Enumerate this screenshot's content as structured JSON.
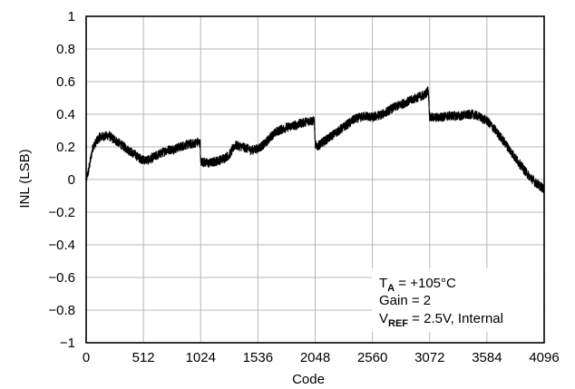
{
  "chart_data": {
    "type": "line",
    "xlabel": "Code",
    "ylabel": "INL (LSB)",
    "xlim": [
      0,
      4096
    ],
    "ylim": [
      -1,
      1
    ],
    "xticks": [
      0,
      512,
      1024,
      1536,
      2048,
      2560,
      3072,
      3584,
      4096
    ],
    "yticks": [
      -1,
      -0.8,
      -0.6,
      -0.4,
      -0.2,
      0,
      0.2,
      0.4,
      0.6,
      0.8,
      1
    ],
    "xtick_labels": [
      "0",
      "512",
      "1024",
      "1536",
      "2048",
      "2560",
      "3072",
      "3584",
      "4096"
    ],
    "ytick_labels": [
      "−1",
      "−0.8",
      "−0.6",
      "−0.4",
      "−0.2",
      "0",
      "0.2",
      "0.4",
      "0.6",
      "0.8",
      "1"
    ],
    "grid": true,
    "line_color": "#000000",
    "noise_band_lsb": 0.03,
    "annotations": {
      "line1_main": "T",
      "line1_sub": "A",
      "line1_rest": " = +105°C",
      "line2": "Gain = 2",
      "line3_main": "V",
      "line3_sub": "REF",
      "line3_rest": " = 2.5V, Internal"
    },
    "series": [
      {
        "x": [
          0,
          20,
          60,
          120,
          200,
          300,
          400,
          480,
          512,
          560,
          640,
          720,
          800,
          880,
          960,
          1000,
          1020,
          1024,
          1030,
          1100,
          1200,
          1280,
          1330,
          1400,
          1480,
          1536,
          1600,
          1660,
          1720,
          1800,
          1900,
          2000,
          2040,
          2048,
          2060,
          2120,
          2200,
          2300,
          2400,
          2500,
          2560,
          2650,
          2750,
          2850,
          2950,
          3030,
          3060,
          3072,
          3090,
          3150,
          3250,
          3350,
          3450,
          3500,
          3584,
          3650,
          3750,
          3850,
          3950,
          4020,
          4060,
          4096
        ],
        "values": [
          0.0,
          0.05,
          0.2,
          0.26,
          0.27,
          0.22,
          0.17,
          0.13,
          0.12,
          0.12,
          0.15,
          0.18,
          0.19,
          0.21,
          0.22,
          0.23,
          0.22,
          0.1,
          0.11,
          0.1,
          0.12,
          0.15,
          0.21,
          0.2,
          0.18,
          0.19,
          0.22,
          0.27,
          0.3,
          0.32,
          0.34,
          0.36,
          0.36,
          0.22,
          0.2,
          0.23,
          0.27,
          0.32,
          0.37,
          0.39,
          0.38,
          0.4,
          0.44,
          0.47,
          0.5,
          0.52,
          0.55,
          0.38,
          0.38,
          0.38,
          0.39,
          0.39,
          0.4,
          0.39,
          0.36,
          0.31,
          0.22,
          0.12,
          0.03,
          -0.02,
          -0.04,
          -0.06
        ]
      }
    ]
  }
}
